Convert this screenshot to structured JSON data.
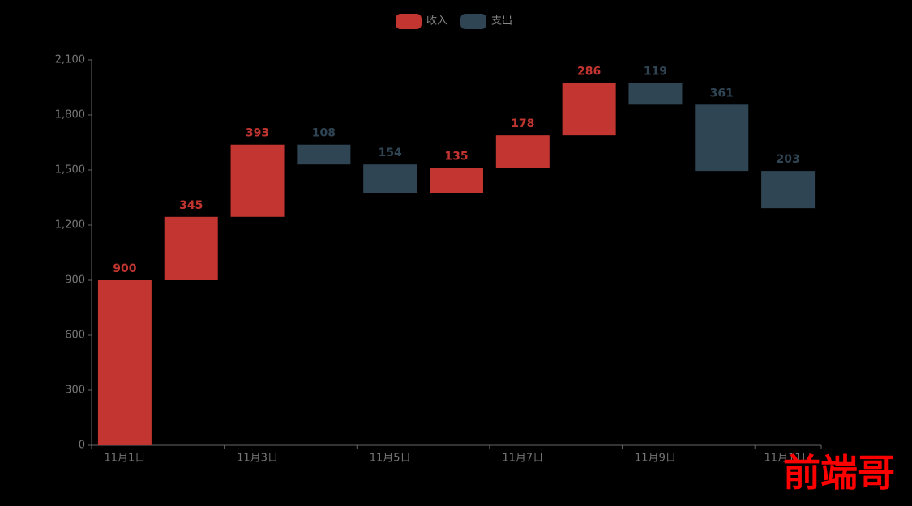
{
  "chart_data": {
    "type": "waterfall",
    "categories": [
      "11月1日",
      null,
      "11月3日",
      null,
      "11月5日",
      null,
      "11月7日",
      null,
      "11月9日",
      null,
      "11月11日"
    ],
    "series": [
      {
        "name": "收入",
        "color": "#c23531",
        "values": [
          900,
          345,
          393,
          null,
          null,
          135,
          178,
          286,
          null,
          null,
          null
        ]
      },
      {
        "name": "支出",
        "color": "#2f4554",
        "values": [
          null,
          null,
          null,
          108,
          154,
          null,
          null,
          null,
          119,
          361,
          203
        ]
      }
    ],
    "ylim": [
      0,
      2100
    ],
    "yticks": [
      0,
      300,
      600,
      900,
      {
        "value": 1200,
        "label": "1,200"
      },
      {
        "value": 1500,
        "label": "1,500"
      },
      {
        "value": 1800,
        "label": "1,800"
      },
      {
        "value": 2100,
        "label": "2,100"
      }
    ],
    "legend": "top",
    "watermark": "前端哥"
  }
}
